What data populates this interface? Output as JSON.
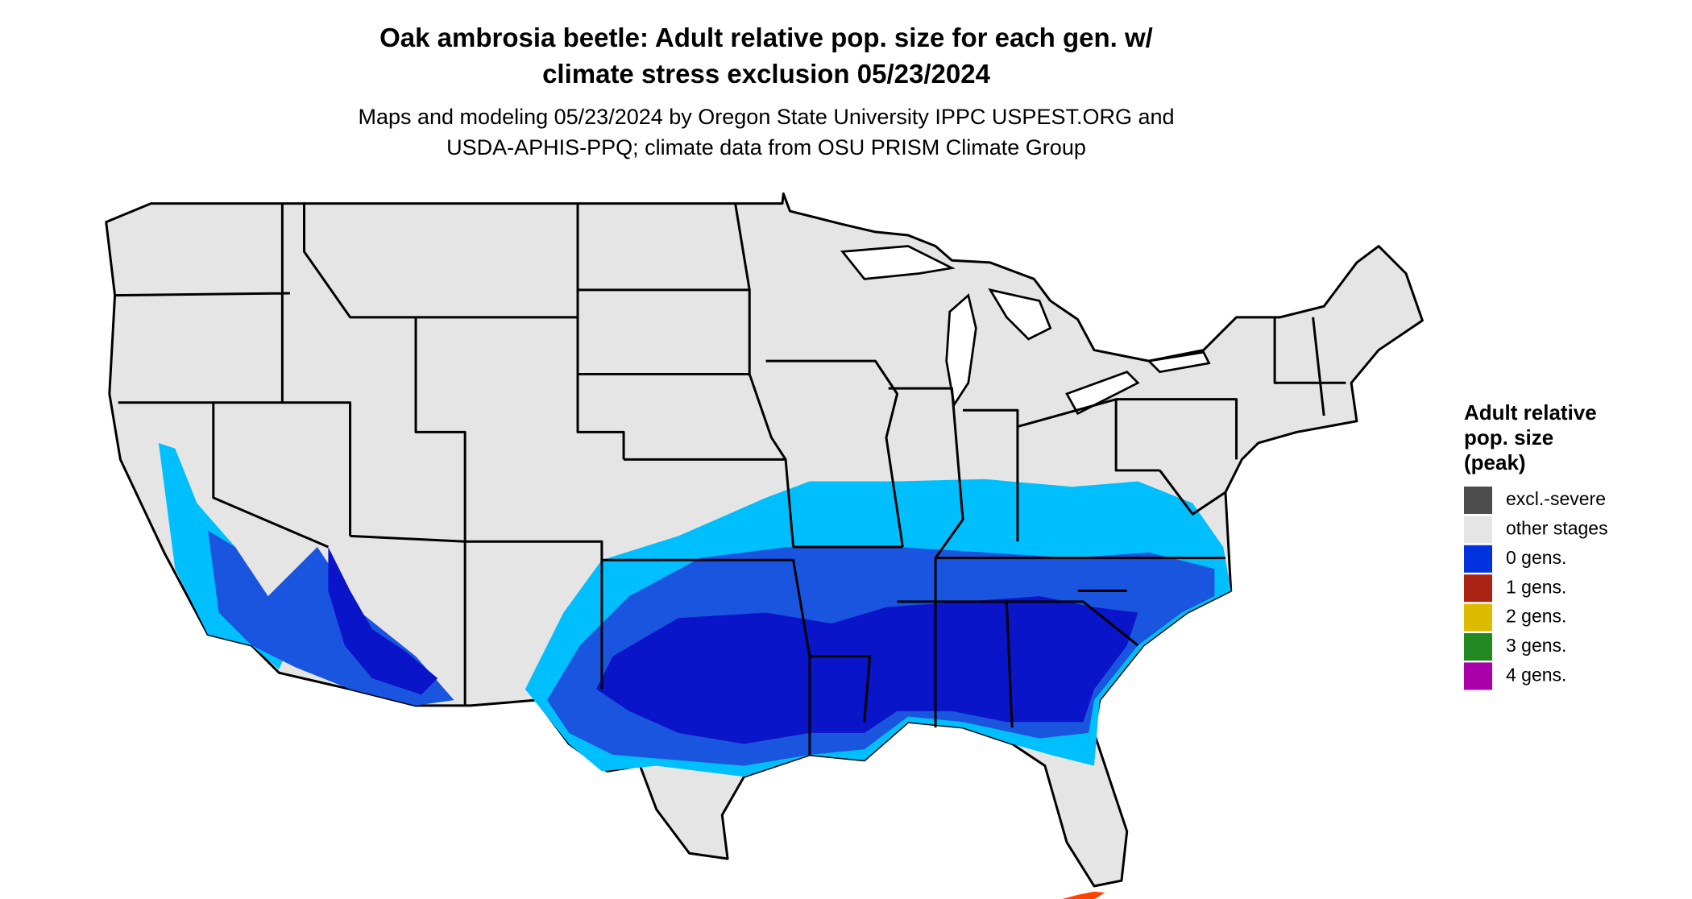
{
  "title": [
    "Oak ambrosia beetle: Adult relative pop. size for each gen. w/",
    "climate stress exclusion 05/23/2024"
  ],
  "subtitle": [
    "Maps and modeling 05/23/2024 by Oregon State University IPPC USPEST.ORG and",
    "USDA-APHIS-PPQ; climate data from OSU PRISM Climate Group"
  ],
  "legend": {
    "title": [
      "Adult relative",
      "pop. size",
      "(peak)"
    ],
    "items": [
      {
        "label": "excl.-severe",
        "color": "#4d4d4d"
      },
      {
        "label": "other stages",
        "color": "#e5e5e5"
      },
      {
        "label": "0 gens.",
        "color": "#0033dd"
      },
      {
        "label": "1 gens.",
        "color": "#aa2211"
      },
      {
        "label": "2 gens.",
        "color": "#ddbb00"
      },
      {
        "label": "3 gens.",
        "color": "#228822"
      },
      {
        "label": "4 gens.",
        "color": "#aa00aa"
      }
    ]
  }
}
